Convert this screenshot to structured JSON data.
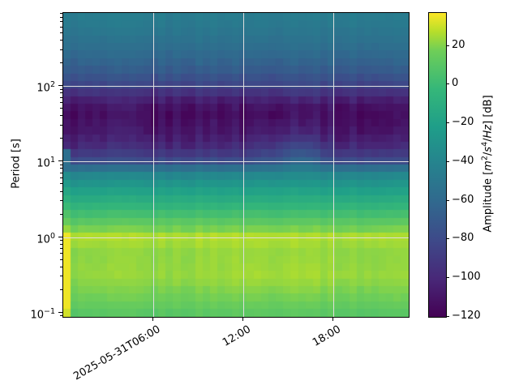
{
  "chart_data": {
    "type": "heatmap",
    "subtype": "spectrogram",
    "title": "",
    "xlabel": "",
    "ylabel": "Period [s]",
    "y_scale": "log",
    "y_range_s": [
      0.0879,
      930
    ],
    "x_axis_type": "datetime",
    "x_range": [
      "2025-05-31T00:00",
      "2025-05-31T23:00"
    ],
    "x_range_hours": [
      0,
      23
    ],
    "x_ticks": [
      {
        "label": "2025-05-31T06:00",
        "hour": 6
      },
      {
        "label": "12:00",
        "hour": 12
      },
      {
        "label": "18:00",
        "hour": 18
      }
    ],
    "y_ticks": [
      {
        "base": "10",
        "exp": "2",
        "period_s": 100
      },
      {
        "base": "10",
        "exp": "1",
        "period_s": 10
      },
      {
        "base": "10",
        "exp": "0",
        "period_s": 1
      },
      {
        "base": "10",
        "exp": "−1",
        "period_s": 0.1
      }
    ],
    "gridlines": {
      "x_hours": [
        6,
        12,
        18
      ],
      "y_periods_s": [
        100,
        10,
        1
      ],
      "color": "#dedede"
    },
    "colormap": {
      "name": "viridis",
      "vmin": -120,
      "vmax": 37,
      "stops": [
        {
          "t": 0.0,
          "color": "#440154"
        },
        {
          "t": 0.125,
          "color": "#482878"
        },
        {
          "t": 0.25,
          "color": "#3e4989"
        },
        {
          "t": 0.375,
          "color": "#31688e"
        },
        {
          "t": 0.5,
          "color": "#26828e"
        },
        {
          "t": 0.625,
          "color": "#1f9e89"
        },
        {
          "t": 0.75,
          "color": "#35b779"
        },
        {
          "t": 0.875,
          "color": "#6ece58"
        },
        {
          "t": 0.9375,
          "color": "#b5de2b"
        },
        {
          "t": 1.0,
          "color": "#fde725"
        }
      ]
    },
    "colorbar_label_text": "Amplitude [m²/s⁴/Hz] [dB]",
    "colorbar_label_parts": {
      "prefix": "Amplitude [",
      "unit_m": "m",
      "exp_m": "2",
      "slash_1": "/",
      "unit_s": "s",
      "exp_s": "4",
      "slash_2": "/",
      "unit_hz": "Hz",
      "suffix": "] [dB]"
    },
    "colorbar_ticks": [
      {
        "label": "20",
        "value": 20
      },
      {
        "label": "0",
        "value": 0
      },
      {
        "label": "−20",
        "value": -20
      },
      {
        "label": "−40",
        "value": -40
      },
      {
        "label": "−60",
        "value": -60
      },
      {
        "label": "−80",
        "value": -80
      },
      {
        "label": "−100",
        "value": -100
      },
      {
        "label": "−120",
        "value": -120
      }
    ],
    "grid": {
      "comment": "Estimated power values in dB on anchor grid; rows = period_anchors_s (ascending), cols = time_anchors_hours",
      "time_anchors_hours": [
        0,
        2,
        4,
        6,
        8,
        10,
        12,
        14,
        16,
        18,
        20,
        22
      ],
      "period_anchors_s": [
        0.088,
        0.15,
        0.3,
        0.6,
        1.0,
        1.5,
        2.5,
        4,
        7,
        10,
        15,
        25,
        45,
        70,
        100,
        160,
        300,
        550,
        930
      ],
      "values_db": [
        [
          8,
          8,
          9,
          8,
          9,
          10,
          10,
          10,
          11,
          9,
          8,
          9
        ],
        [
          16,
          16,
          17,
          16,
          17,
          18,
          18,
          18,
          19,
          17,
          16,
          17
        ],
        [
          22,
          22,
          23,
          22,
          23,
          24,
          25,
          25,
          26,
          24,
          23,
          23
        ],
        [
          21,
          21,
          22,
          21,
          22,
          23,
          23,
          23,
          24,
          22,
          21,
          22
        ],
        [
          26,
          26,
          26,
          26,
          26,
          27,
          27,
          27,
          27,
          26,
          26,
          26
        ],
        [
          12,
          12,
          13,
          12,
          13,
          13,
          13,
          13,
          14,
          13,
          12,
          13
        ],
        [
          -5,
          -5,
          -4,
          -5,
          -4,
          -4,
          -4,
          -4,
          -3,
          -4,
          -5,
          -4
        ],
        [
          -20,
          -20,
          -19,
          -20,
          -19,
          -19,
          -19,
          -18,
          -17,
          -19,
          -20,
          -19
        ],
        [
          -42,
          -42,
          -41,
          -42,
          -41,
          -40,
          -41,
          -39,
          -37,
          -41,
          -42,
          -41
        ],
        [
          -78,
          -79,
          -78,
          -80,
          -78,
          -77,
          -78,
          -70,
          -58,
          -77,
          -79,
          -78
        ],
        [
          -99,
          -99,
          -97,
          -100,
          -98,
          -97,
          -98,
          -88,
          -76,
          -97,
          -99,
          -98
        ],
        [
          -111,
          -111,
          -108,
          -112,
          -110,
          -108,
          -110,
          -104,
          -99,
          -109,
          -111,
          -110
        ],
        [
          -117,
          -116,
          -113,
          -117,
          -115,
          -113,
          -116,
          -113,
          -112,
          -114,
          -116,
          -115
        ],
        [
          -103,
          -104,
          -102,
          -104,
          -103,
          -101,
          -103,
          -100,
          -96,
          -102,
          -103,
          -103
        ],
        [
          -83,
          -84,
          -83,
          -84,
          -83,
          -82,
          -83,
          -82,
          -79,
          -83,
          -84,
          -83
        ],
        [
          -69,
          -70,
          -69,
          -70,
          -69,
          -68,
          -69,
          -69,
          -67,
          -69,
          -70,
          -69
        ],
        [
          -57,
          -58,
          -57,
          -58,
          -57,
          -57,
          -57,
          -57,
          -56,
          -57,
          -58,
          -57
        ],
        [
          -50,
          -50,
          -49,
          -50,
          -50,
          -49,
          -50,
          -50,
          -49,
          -50,
          -50,
          -50
        ],
        [
          -45,
          -45,
          -44,
          -45,
          -45,
          -44,
          -45,
          -45,
          -44,
          -45,
          -45,
          -45
        ]
      ]
    },
    "features": {
      "first_column_stripe": {
        "hour": 0,
        "period_max_s": 1.15,
        "value_db": 35,
        "note": "bright yellow first time bin below ~1 s"
      },
      "afternoon_burst": {
        "hours": [
          15,
          17
        ],
        "periods_s": [
          8,
          30
        ],
        "note": "elevated amplitude (teal intrusion) before 18:00"
      }
    },
    "legend_position": "right-colorbar"
  }
}
